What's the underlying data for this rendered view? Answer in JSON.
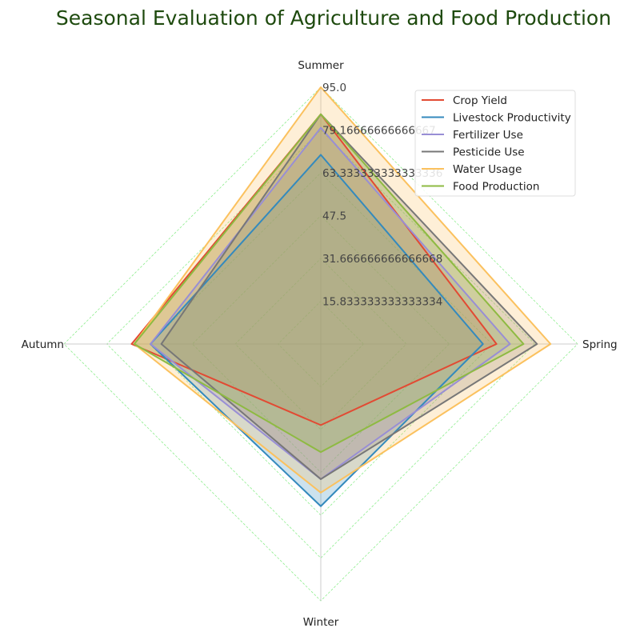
{
  "chart_data": {
    "type": "radar",
    "title": "Seasonal Evaluation of Agriculture and Food Production",
    "categories": [
      "Spring",
      "Summer",
      "Autumn",
      "Winter"
    ],
    "rmax": 95.0,
    "radial_ticks": [
      "15.833333333333334",
      "31.666666666666668",
      "47.5",
      "63.333333333333336",
      "79.16666666666667",
      "95.0"
    ],
    "grid": true,
    "legend_position": "top-right",
    "series": [
      {
        "name": "Crop Yield",
        "color": "#e24a33",
        "values": [
          65,
          85,
          70,
          30
        ]
      },
      {
        "name": "Livestock Productivity",
        "color": "#348abd",
        "values": [
          60,
          70,
          63,
          60
        ]
      },
      {
        "name": "Fertilizer Use",
        "color": "#988ed5",
        "values": [
          70,
          80,
          63,
          50
        ]
      },
      {
        "name": "Pesticide Use",
        "color": "#777777",
        "values": [
          80,
          85,
          59,
          50
        ]
      },
      {
        "name": "Water Usage",
        "color": "#fbc15e",
        "values": [
          85,
          95,
          69,
          55
        ]
      },
      {
        "name": "Food Production",
        "color": "#8eba42",
        "values": [
          75,
          85,
          69,
          40
        ]
      }
    ]
  }
}
